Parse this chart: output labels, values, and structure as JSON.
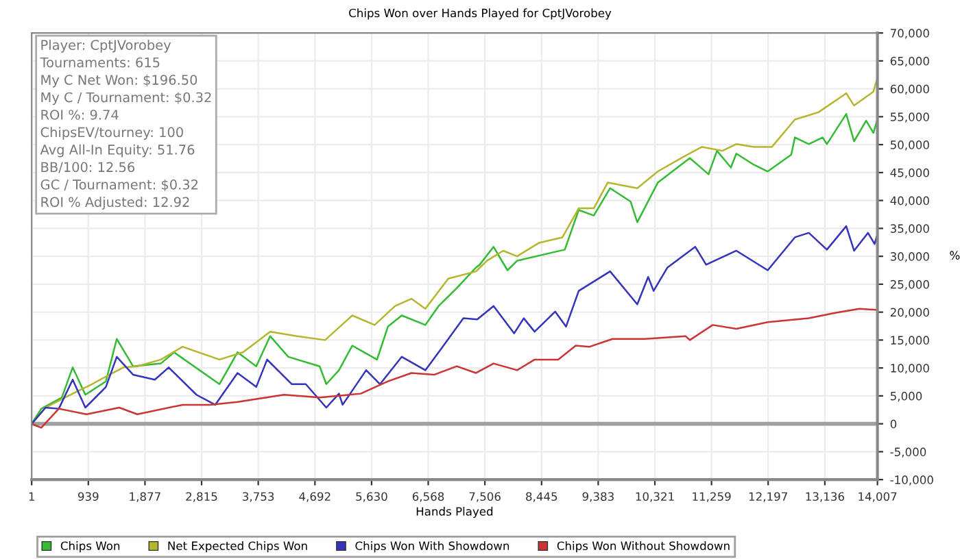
{
  "chart_data": {
    "type": "line",
    "title": "Chips Won over Hands Played for CptJVorobey",
    "xlabel": "Hands Played",
    "ylabel": "%",
    "annotations": [
      "Player: CptJVorobey",
      "Tournaments: 615",
      "My C Net Won: $196.50",
      "My C / Tournament: $0.32",
      "ROI %: 9.74",
      "ChipsEV/tourney: 100",
      "Avg All-In Equity: 51.76",
      "BB/100: 12.56",
      "GC / Tournament: $0.32",
      "ROI % Adjusted: 12.92"
    ],
    "xlim": [
      1,
      14007
    ],
    "ylim": [
      -10000,
      70000
    ],
    "xticks": [
      1,
      {
        "value": 939,
        "label": "939"
      },
      {
        "value": 1877,
        "label": "1,877"
      },
      {
        "value": 2815,
        "label": "2,815"
      },
      {
        "value": 3753,
        "label": "3,753"
      },
      {
        "value": 4692,
        "label": "4,692"
      },
      {
        "value": 5630,
        "label": "5,630"
      },
      {
        "value": 6568,
        "label": "6,568"
      },
      {
        "value": 7506,
        "label": "7,506"
      },
      {
        "value": 8445,
        "label": "8,445"
      },
      {
        "value": 9383,
        "label": "9,383"
      },
      {
        "value": 10321,
        "label": "10,321"
      },
      {
        "value": 11259,
        "label": "11,259"
      },
      {
        "value": 12197,
        "label": "12,197"
      },
      {
        "value": 13136,
        "label": "13,136"
      },
      {
        "value": 14007,
        "label": "14,007"
      }
    ],
    "yticks": [
      {
        "value": -10000,
        "label": "-10,000"
      },
      {
        "value": -5000,
        "label": "-5,000"
      },
      0,
      {
        "value": 5000,
        "label": "5,000"
      },
      {
        "value": 10000,
        "label": "10,000"
      },
      {
        "value": 15000,
        "label": "15,000"
      },
      {
        "value": 20000,
        "label": "20,000"
      },
      {
        "value": 25000,
        "label": "25,000"
      },
      {
        "value": 30000,
        "label": "30,000"
      },
      {
        "value": 35000,
        "label": "35,000"
      },
      {
        "value": 40000,
        "label": "40,000"
      },
      {
        "value": 45000,
        "label": "45,000"
      },
      {
        "value": 50000,
        "label": "50,000"
      },
      {
        "value": 55000,
        "label": "55,000"
      },
      {
        "value": 60000,
        "label": "60,000"
      },
      {
        "value": 65000,
        "label": "65,000"
      },
      {
        "value": 70000,
        "label": "70,000"
      }
    ],
    "grid": true,
    "legend": "bottom",
    "marker": "none",
    "line_style": "solid",
    "ref_lines": [
      {
        "axis": "y",
        "value": 0,
        "label": null,
        "color": "#a0a0a0"
      }
    ],
    "series": [
      {
        "name": "Chips Won",
        "color": "#33bb33",
        "x": [
          1,
          160,
          500,
          680,
          890,
          1230,
          1410,
          1680,
          2140,
          2360,
          3110,
          3410,
          3720,
          3950,
          4250,
          4770,
          4880,
          5090,
          5310,
          5720,
          5900,
          6130,
          6520,
          6740,
          7040,
          7360,
          7420,
          7650,
          7880,
          8040,
          8830,
          9060,
          9310,
          9580,
          9920,
          10030,
          10370,
          10670,
          10900,
          11210,
          11350,
          11580,
          11670,
          11960,
          12190,
          12580,
          12640,
          12870,
          13100,
          13170,
          13490,
          13620,
          13820,
          13940,
          14000
        ],
        "values": [
          0,
          2700,
          4700,
          10100,
          5200,
          7600,
          15200,
          10300,
          10800,
          12800,
          7100,
          12800,
          10300,
          15700,
          12000,
          10300,
          7100,
          9600,
          14000,
          11500,
          17400,
          19400,
          17700,
          21100,
          24300,
          28000,
          28500,
          31700,
          27500,
          29200,
          31200,
          38300,
          37300,
          42200,
          39800,
          36100,
          43200,
          45700,
          47600,
          44700,
          48900,
          45900,
          48400,
          46400,
          45200,
          48200,
          51300,
          50100,
          51300,
          50100,
          55500,
          50600,
          54300,
          52100,
          54300
        ]
      },
      {
        "name": "Net Expected Chips Won",
        "color": "#b5b52e",
        "x": [
          1,
          230,
          680,
          1000,
          1290,
          1520,
          1750,
          2140,
          2500,
          3110,
          3500,
          3950,
          4400,
          4860,
          5310,
          5680,
          6020,
          6290,
          6520,
          6900,
          7360,
          7540,
          7810,
          8040,
          8400,
          8790,
          9060,
          9310,
          9540,
          10030,
          10370,
          10760,
          11100,
          11440,
          11670,
          11960,
          12260,
          12640,
          13030,
          13490,
          13620,
          13940,
          14000
        ],
        "values": [
          0,
          2900,
          5400,
          7100,
          8800,
          10100,
          10300,
          11500,
          13800,
          11500,
          12800,
          16500,
          15700,
          15000,
          19400,
          17700,
          21100,
          22400,
          20600,
          26000,
          27300,
          29200,
          31000,
          30000,
          32400,
          33400,
          38600,
          38600,
          43200,
          42200,
          45200,
          47600,
          49600,
          48900,
          50100,
          49600,
          49600,
          54500,
          55800,
          59200,
          57000,
          59500,
          61700
        ]
      },
      {
        "name": "Chips Won With Showdown",
        "color": "#3333bb",
        "x": [
          1,
          230,
          450,
          680,
          890,
          1230,
          1410,
          1680,
          2040,
          2270,
          2730,
          3040,
          3410,
          3720,
          3900,
          4310,
          4540,
          4880,
          5090,
          5150,
          5540,
          5770,
          6130,
          6520,
          6740,
          7150,
          7380,
          7650,
          7990,
          8150,
          8330,
          8670,
          8850,
          9060,
          9580,
          10030,
          10210,
          10300,
          10530,
          10990,
          11170,
          11670,
          12190,
          12640,
          12870,
          13170,
          13490,
          13620,
          13850,
          13960,
          14000
        ],
        "values": [
          0,
          2900,
          2700,
          7900,
          2900,
          6600,
          12000,
          8800,
          7900,
          10100,
          5200,
          3400,
          9100,
          6600,
          11500,
          7100,
          7100,
          2900,
          5400,
          3400,
          9600,
          7100,
          12000,
          9600,
          12800,
          18900,
          18700,
          21100,
          16200,
          18900,
          16500,
          20100,
          17400,
          23800,
          27300,
          21400,
          26300,
          23800,
          28000,
          31700,
          28500,
          31000,
          27500,
          33400,
          34200,
          31200,
          35400,
          31000,
          34200,
          32200,
          33700
        ]
      },
      {
        "name": "Chips Won Without Showdown",
        "color": "#cc3333",
        "x": [
          1,
          160,
          450,
          910,
          1450,
          1750,
          2500,
          2950,
          3410,
          4180,
          4770,
          5450,
          5900,
          6290,
          6670,
          7040,
          7360,
          7650,
          8040,
          8330,
          8720,
          9010,
          9240,
          9620,
          10150,
          10830,
          10900,
          11280,
          11670,
          12190,
          12870,
          13320,
          13710,
          14000
        ],
        "values": [
          0,
          -700,
          2700,
          1700,
          2900,
          1700,
          3400,
          3400,
          3900,
          5200,
          4700,
          5400,
          7600,
          9100,
          8800,
          10300,
          9100,
          10800,
          9600,
          11500,
          11500,
          14000,
          13800,
          15200,
          15200,
          15700,
          15000,
          17700,
          17000,
          18200,
          18900,
          19900,
          20600,
          20400
        ]
      }
    ]
  }
}
